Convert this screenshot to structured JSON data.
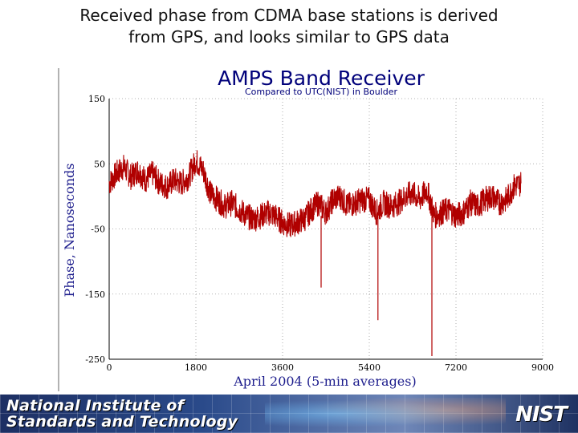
{
  "slide": {
    "title_line1": "Received phase from CDMA base stations is derived",
    "title_line2": "from GPS, and looks similar to GPS data"
  },
  "footer": {
    "org_line1": "National Institute of",
    "org_line2": "Standards and Technology",
    "logo_text": "NIST"
  },
  "colors": {
    "series": "#b00000",
    "title": "#00007a",
    "axis_label": "#1c1c8c"
  },
  "chart_data": {
    "type": "line",
    "title": "AMPS Band Receiver",
    "subtitle": "Compared to UTC(NIST) in Boulder",
    "xlabel": "April 2004 (5-min averages)",
    "ylabel": "Phase, Nanoseconds",
    "xlim": [
      0,
      9000
    ],
    "ylim": [
      -250,
      150
    ],
    "xticks": [
      0,
      1800,
      3600,
      5400,
      7200,
      9000
    ],
    "yticks": [
      150,
      50,
      -50,
      -150,
      -250
    ],
    "grid": true,
    "series": [
      {
        "x": [
          0,
          150,
          300,
          450,
          600,
          750,
          900,
          1050,
          1200,
          1350,
          1500,
          1650,
          1800,
          1950,
          2100,
          2250,
          2400,
          2550,
          2700,
          2850,
          3000,
          3150,
          3300,
          3450,
          3600,
          3750,
          3900,
          4050,
          4200,
          4350,
          4500,
          4650,
          4800,
          4950,
          5100,
          5250,
          5400,
          5550,
          5700,
          5850,
          6000,
          6150,
          6300,
          6450,
          6600,
          6750,
          6900,
          7050,
          7200,
          7350,
          7500,
          7650,
          7800,
          7950,
          8100,
          8250,
          8400,
          8550
        ],
        "y": [
          20,
          35,
          45,
          30,
          40,
          25,
          35,
          20,
          15,
          25,
          20,
          30,
          55,
          40,
          5,
          -5,
          -15,
          -10,
          -20,
          -30,
          -35,
          -30,
          -25,
          -30,
          -40,
          -45,
          -40,
          -35,
          -20,
          -10,
          -25,
          -5,
          0,
          -15,
          -10,
          -5,
          -5,
          -25,
          -10,
          -15,
          -10,
          0,
          5,
          -5,
          10,
          -30,
          -25,
          -20,
          -30,
          -25,
          -10,
          -15,
          -5,
          0,
          -10,
          -5,
          15,
          20
        ]
      }
    ],
    "spikes": [
      {
        "x": 4400,
        "y": -140
      },
      {
        "x": 5580,
        "y": -190
      },
      {
        "x": 6700,
        "y": -245
      }
    ]
  }
}
